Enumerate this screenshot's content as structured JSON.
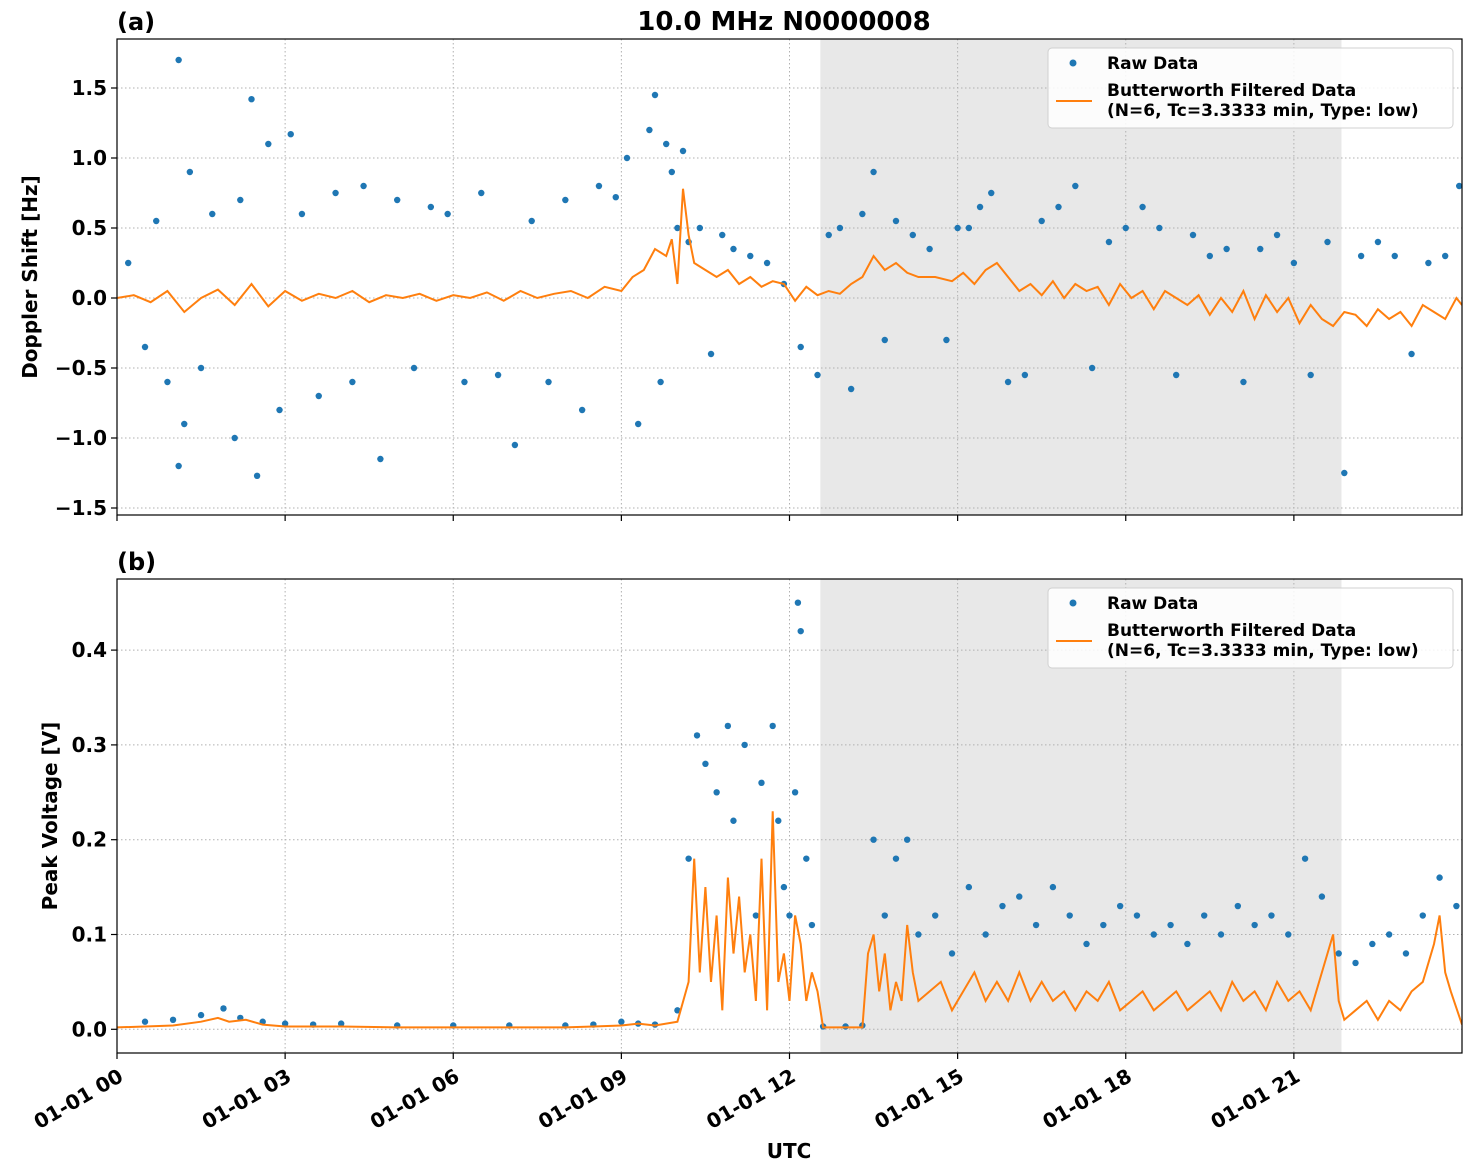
{
  "figure": {
    "title": "10.0 MHz N0000008",
    "xlabel": "UTC",
    "shade_range_hours": [
      12.55,
      21.85
    ],
    "colors": {
      "raw": "#1f77b4",
      "filtered": "#ff7f0e",
      "shade": "#e8e8e8"
    },
    "legend": {
      "raw_label": "Raw Data",
      "filtered_label_line1": "Butterworth Filtered Data",
      "filtered_label_line2": "(N=6, Tc=3.3333 min, Type: low)",
      "placement": "upper-right"
    }
  },
  "chart_data": [
    {
      "type": "scatter",
      "panel_label": "(a)",
      "ylabel": "Doppler Shift [Hz]",
      "xlim": [
        0,
        24
      ],
      "ylim": [
        -1.55,
        1.85
      ],
      "x_ticks": [
        0,
        3,
        6,
        9,
        12,
        15,
        18,
        21
      ],
      "x_tick_labels": [
        "01-01 00",
        "01-01 03",
        "01-01 06",
        "01-01 09",
        "01-01 12",
        "01-01 15",
        "01-01 18",
        "01-01 21"
      ],
      "y_ticks": [
        -1.5,
        -1.0,
        -0.5,
        0.0,
        0.5,
        1.0,
        1.5
      ],
      "y_tick_labels": [
        "−1.5",
        "−1.0",
        "−0.5",
        "0.0",
        "0.5",
        "1.0",
        "1.5"
      ],
      "grid": true,
      "series": [
        {
          "name": "Raw Data",
          "style": "points",
          "x": [
            0.2,
            0.5,
            0.7,
            0.9,
            1.1,
            1.1,
            1.2,
            1.3,
            1.5,
            1.7,
            2.1,
            2.2,
            2.4,
            2.5,
            2.7,
            2.9,
            3.1,
            3.3,
            3.6,
            3.9,
            4.2,
            4.4,
            4.7,
            5.0,
            5.3,
            5.6,
            5.9,
            6.2,
            6.5,
            6.8,
            7.1,
            7.4,
            7.7,
            8.0,
            8.3,
            8.6,
            8.9,
            9.1,
            9.3,
            9.5,
            9.6,
            9.7,
            9.8,
            9.9,
            10.0,
            10.1,
            10.2,
            10.4,
            10.6,
            10.8,
            11.0,
            11.3,
            11.6,
            11.9,
            12.2,
            12.5,
            12.7,
            12.9,
            13.1,
            13.3,
            13.5,
            13.7,
            13.9,
            14.2,
            14.5,
            14.8,
            15.0,
            15.2,
            15.4,
            15.6,
            15.9,
            16.2,
            16.5,
            16.8,
            17.1,
            17.4,
            17.7,
            18.0,
            18.3,
            18.6,
            18.9,
            19.2,
            19.5,
            19.8,
            20.1,
            20.4,
            20.7,
            21.0,
            21.3,
            21.6,
            21.9,
            22.2,
            22.5,
            22.8,
            23.1,
            23.4,
            23.7,
            23.95
          ],
          "y": [
            0.25,
            -0.35,
            0.55,
            -0.6,
            1.7,
            -1.2,
            -0.9,
            0.9,
            -0.5,
            0.6,
            -1.0,
            0.7,
            1.42,
            -1.27,
            1.1,
            -0.8,
            1.17,
            0.6,
            -0.7,
            0.75,
            -0.6,
            0.8,
            -1.15,
            0.7,
            -0.5,
            0.65,
            0.6,
            -0.6,
            0.75,
            -0.55,
            -1.05,
            0.55,
            -0.6,
            0.7,
            -0.8,
            0.8,
            0.72,
            1.0,
            -0.9,
            1.2,
            1.45,
            -0.6,
            1.1,
            0.9,
            0.5,
            1.05,
            0.4,
            0.5,
            -0.4,
            0.45,
            0.35,
            0.3,
            0.25,
            0.1,
            -0.35,
            -0.55,
            0.45,
            0.5,
            -0.65,
            0.6,
            0.9,
            -0.3,
            0.55,
            0.45,
            0.35,
            -0.3,
            0.5,
            0.5,
            0.65,
            0.75,
            -0.6,
            -0.55,
            0.55,
            0.65,
            0.8,
            -0.5,
            0.4,
            0.5,
            0.65,
            0.5,
            -0.55,
            0.45,
            0.3,
            0.35,
            -0.6,
            0.35,
            0.45,
            0.25,
            -0.55,
            0.4,
            -1.25,
            0.3,
            0.4,
            0.3,
            -0.4,
            0.25,
            0.3,
            0.8
          ]
        },
        {
          "name": "Butterworth Filtered Data (N=6, Tc=3.3333 min, Type: low)",
          "style": "line",
          "x": [
            0,
            0.3,
            0.6,
            0.9,
            1.2,
            1.5,
            1.8,
            2.1,
            2.4,
            2.7,
            3.0,
            3.3,
            3.6,
            3.9,
            4.2,
            4.5,
            4.8,
            5.1,
            5.4,
            5.7,
            6.0,
            6.3,
            6.6,
            6.9,
            7.2,
            7.5,
            7.8,
            8.1,
            8.4,
            8.7,
            9.0,
            9.2,
            9.4,
            9.6,
            9.8,
            9.9,
            10.0,
            10.1,
            10.2,
            10.3,
            10.5,
            10.7,
            10.9,
            11.1,
            11.3,
            11.5,
            11.7,
            11.9,
            12.1,
            12.3,
            12.5,
            12.7,
            12.9,
            13.1,
            13.3,
            13.5,
            13.7,
            13.9,
            14.1,
            14.3,
            14.6,
            14.9,
            15.1,
            15.3,
            15.5,
            15.7,
            15.9,
            16.1,
            16.3,
            16.5,
            16.7,
            16.9,
            17.1,
            17.3,
            17.5,
            17.7,
            17.9,
            18.1,
            18.3,
            18.5,
            18.7,
            18.9,
            19.1,
            19.3,
            19.5,
            19.7,
            19.9,
            20.1,
            20.3,
            20.5,
            20.7,
            20.9,
            21.1,
            21.3,
            21.5,
            21.7,
            21.9,
            22.1,
            22.3,
            22.5,
            22.7,
            22.9,
            23.1,
            23.3,
            23.5,
            23.7,
            23.9,
            24.0
          ],
          "y": [
            0.0,
            0.02,
            -0.03,
            0.05,
            -0.1,
            0.0,
            0.06,
            -0.05,
            0.1,
            -0.06,
            0.05,
            -0.02,
            0.03,
            0.0,
            0.05,
            -0.03,
            0.02,
            0.0,
            0.03,
            -0.02,
            0.02,
            0.0,
            0.04,
            -0.02,
            0.05,
            0.0,
            0.03,
            0.05,
            0.0,
            0.08,
            0.05,
            0.15,
            0.2,
            0.35,
            0.3,
            0.42,
            0.1,
            0.78,
            0.45,
            0.25,
            0.2,
            0.15,
            0.2,
            0.1,
            0.15,
            0.08,
            0.12,
            0.1,
            -0.02,
            0.08,
            0.02,
            0.05,
            0.03,
            0.1,
            0.15,
            0.3,
            0.2,
            0.25,
            0.18,
            0.15,
            0.15,
            0.12,
            0.18,
            0.1,
            0.2,
            0.25,
            0.15,
            0.05,
            0.1,
            0.02,
            0.12,
            0.0,
            0.1,
            0.05,
            0.08,
            -0.05,
            0.1,
            0.0,
            0.05,
            -0.08,
            0.05,
            0.0,
            -0.05,
            0.02,
            -0.12,
            0.0,
            -0.1,
            0.05,
            -0.15,
            0.02,
            -0.1,
            0.0,
            -0.18,
            -0.05,
            -0.15,
            -0.2,
            -0.1,
            -0.12,
            -0.2,
            -0.08,
            -0.15,
            -0.1,
            -0.2,
            -0.05,
            -0.1,
            -0.15,
            0.0,
            -0.05
          ]
        }
      ]
    },
    {
      "type": "scatter",
      "panel_label": "(b)",
      "ylabel": "Peak Voltage [V]",
      "xlim": [
        0,
        24
      ],
      "ylim": [
        -0.025,
        0.475
      ],
      "x_ticks": [
        0,
        3,
        6,
        9,
        12,
        15,
        18,
        21
      ],
      "x_tick_labels": [
        "01-01 00",
        "01-01 03",
        "01-01 06",
        "01-01 09",
        "01-01 12",
        "01-01 15",
        "01-01 18",
        "01-01 21"
      ],
      "y_ticks": [
        0.0,
        0.1,
        0.2,
        0.3,
        0.4
      ],
      "y_tick_labels": [
        "0.0",
        "0.1",
        "0.2",
        "0.3",
        "0.4"
      ],
      "grid": true,
      "series": [
        {
          "name": "Raw Data",
          "style": "points",
          "x": [
            0.5,
            1.0,
            1.5,
            1.9,
            2.2,
            2.6,
            3.0,
            3.5,
            4.0,
            5.0,
            6.0,
            7.0,
            8.0,
            8.5,
            9.0,
            9.3,
            9.6,
            10.0,
            10.2,
            10.35,
            10.5,
            10.7,
            10.9,
            11.0,
            11.2,
            11.4,
            11.5,
            11.7,
            11.8,
            11.9,
            12.0,
            12.1,
            12.15,
            12.2,
            12.3,
            12.4,
            12.6,
            13.0,
            13.3,
            13.5,
            13.7,
            13.9,
            14.1,
            14.3,
            14.6,
            14.9,
            15.2,
            15.5,
            15.8,
            16.1,
            16.4,
            16.7,
            17.0,
            17.3,
            17.6,
            17.9,
            18.2,
            18.5,
            18.8,
            19.1,
            19.4,
            19.7,
            20.0,
            20.3,
            20.6,
            20.9,
            21.2,
            21.5,
            21.8,
            22.1,
            22.4,
            22.7,
            23.0,
            23.3,
            23.6,
            23.9
          ],
          "y": [
            0.008,
            0.01,
            0.015,
            0.022,
            0.012,
            0.008,
            0.006,
            0.005,
            0.006,
            0.004,
            0.004,
            0.004,
            0.004,
            0.005,
            0.008,
            0.006,
            0.005,
            0.02,
            0.18,
            0.31,
            0.28,
            0.25,
            0.32,
            0.22,
            0.3,
            0.12,
            0.26,
            0.32,
            0.22,
            0.15,
            0.12,
            0.25,
            0.45,
            0.42,
            0.18,
            0.11,
            0.003,
            0.003,
            0.004,
            0.2,
            0.12,
            0.18,
            0.2,
            0.1,
            0.12,
            0.08,
            0.15,
            0.1,
            0.13,
            0.14,
            0.11,
            0.15,
            0.12,
            0.09,
            0.11,
            0.13,
            0.12,
            0.1,
            0.11,
            0.09,
            0.12,
            0.1,
            0.13,
            0.11,
            0.12,
            0.1,
            0.18,
            0.14,
            0.08,
            0.07,
            0.09,
            0.1,
            0.08,
            0.12,
            0.16,
            0.13
          ]
        },
        {
          "name": "Butterworth Filtered Data (N=6, Tc=3.3333 min, Type: low)",
          "style": "line",
          "x": [
            0,
            0.5,
            1.0,
            1.5,
            1.8,
            2.0,
            2.3,
            2.6,
            3.0,
            3.5,
            4.0,
            5.0,
            6.0,
            7.0,
            8.0,
            8.5,
            9.0,
            9.3,
            9.6,
            10.0,
            10.2,
            10.3,
            10.4,
            10.5,
            10.6,
            10.7,
            10.8,
            10.9,
            11.0,
            11.1,
            11.2,
            11.3,
            11.4,
            11.5,
            11.6,
            11.7,
            11.8,
            11.9,
            12.0,
            12.1,
            12.2,
            12.3,
            12.4,
            12.5,
            12.6,
            13.0,
            13.3,
            13.4,
            13.5,
            13.6,
            13.7,
            13.8,
            13.9,
            14.0,
            14.1,
            14.2,
            14.3,
            14.5,
            14.7,
            14.9,
            15.1,
            15.3,
            15.5,
            15.7,
            15.9,
            16.1,
            16.3,
            16.5,
            16.7,
            16.9,
            17.1,
            17.3,
            17.5,
            17.7,
            17.9,
            18.1,
            18.3,
            18.5,
            18.7,
            18.9,
            19.1,
            19.3,
            19.5,
            19.7,
            19.9,
            20.1,
            20.3,
            20.5,
            20.7,
            20.9,
            21.1,
            21.3,
            21.5,
            21.7,
            21.8,
            21.9,
            22.1,
            22.3,
            22.5,
            22.7,
            22.9,
            23.1,
            23.3,
            23.5,
            23.6,
            23.7,
            23.8,
            24.0
          ],
          "y": [
            0.002,
            0.003,
            0.004,
            0.008,
            0.012,
            0.008,
            0.01,
            0.005,
            0.003,
            0.003,
            0.003,
            0.002,
            0.002,
            0.002,
            0.002,
            0.003,
            0.004,
            0.006,
            0.004,
            0.008,
            0.05,
            0.18,
            0.06,
            0.15,
            0.05,
            0.12,
            0.02,
            0.16,
            0.08,
            0.14,
            0.06,
            0.1,
            0.03,
            0.18,
            0.02,
            0.23,
            0.05,
            0.08,
            0.03,
            0.12,
            0.09,
            0.03,
            0.06,
            0.04,
            0.002,
            0.002,
            0.002,
            0.08,
            0.1,
            0.04,
            0.08,
            0.02,
            0.05,
            0.03,
            0.11,
            0.06,
            0.03,
            0.04,
            0.05,
            0.02,
            0.04,
            0.06,
            0.03,
            0.05,
            0.03,
            0.06,
            0.03,
            0.05,
            0.03,
            0.04,
            0.02,
            0.04,
            0.03,
            0.05,
            0.02,
            0.03,
            0.04,
            0.02,
            0.03,
            0.04,
            0.02,
            0.03,
            0.04,
            0.02,
            0.05,
            0.03,
            0.04,
            0.02,
            0.05,
            0.03,
            0.04,
            0.02,
            0.06,
            0.1,
            0.03,
            0.01,
            0.02,
            0.03,
            0.01,
            0.03,
            0.02,
            0.04,
            0.05,
            0.09,
            0.12,
            0.06,
            0.04,
            0.005
          ]
        }
      ]
    }
  ]
}
